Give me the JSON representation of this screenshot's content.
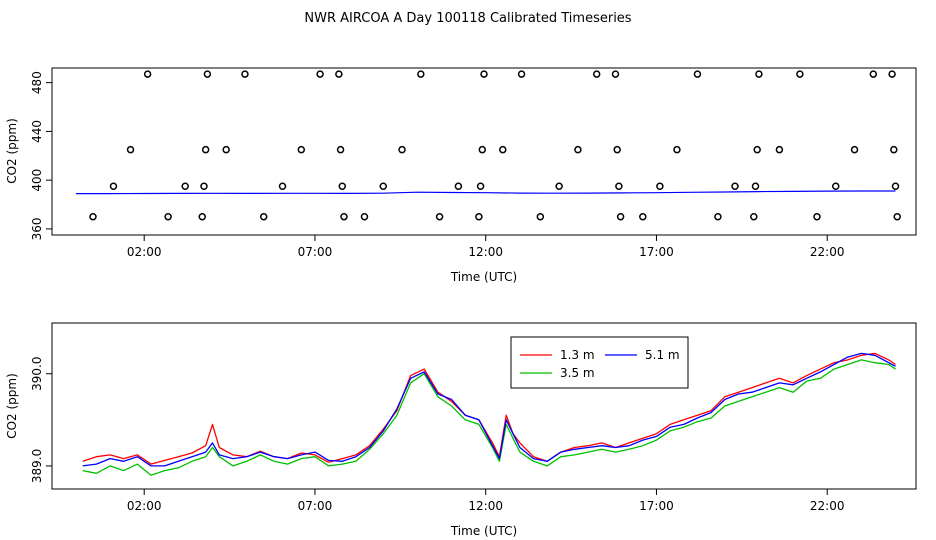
{
  "page_title": "NWR AIRCOA A  Day 100118  Calibrated Timeseries",
  "colors": {
    "1.3 m": "#ff0000",
    "3.5 m": "#00c000",
    "5.1 m": "#0000ff",
    "markers": "#000000"
  },
  "chart_data": [
    {
      "type": "scatter",
      "title": "NWR AIRCOA A  Day 100118  Calibrated Timeseries",
      "xlabel": "Time (UTC)",
      "ylabel": "CO2 (ppm)",
      "xlim": [
        -0.7,
        24.6
      ],
      "ylim": [
        355,
        492
      ],
      "grid": false,
      "x_ticks": [
        2,
        7,
        12,
        17,
        22
      ],
      "x_tick_labels": [
        "02:00",
        "07:00",
        "12:00",
        "17:00",
        "22:00"
      ],
      "y_ticks": [
        360,
        400,
        440,
        480
      ],
      "y_tick_labels": [
        "360",
        "400",
        "440",
        "480"
      ],
      "calibration_markers": [
        {
          "x": 0.5,
          "y": 370
        },
        {
          "x": 1.1,
          "y": 395
        },
        {
          "x": 1.6,
          "y": 425
        },
        {
          "x": 2.1,
          "y": 487
        },
        {
          "x": 2.7,
          "y": 370
        },
        {
          "x": 3.2,
          "y": 395
        },
        {
          "x": 3.7,
          "y": 370
        },
        {
          "x": 3.75,
          "y": 395
        },
        {
          "x": 3.8,
          "y": 425
        },
        {
          "x": 3.85,
          "y": 487
        },
        {
          "x": 4.4,
          "y": 425
        },
        {
          "x": 4.95,
          "y": 487
        },
        {
          "x": 5.5,
          "y": 370
        },
        {
          "x": 6.05,
          "y": 395
        },
        {
          "x": 6.6,
          "y": 425
        },
        {
          "x": 7.15,
          "y": 487
        },
        {
          "x": 7.7,
          "y": 487
        },
        {
          "x": 7.75,
          "y": 425
        },
        {
          "x": 7.8,
          "y": 395
        },
        {
          "x": 7.85,
          "y": 370
        },
        {
          "x": 8.45,
          "y": 370
        },
        {
          "x": 9.0,
          "y": 395
        },
        {
          "x": 9.55,
          "y": 425
        },
        {
          "x": 10.1,
          "y": 487
        },
        {
          "x": 10.65,
          "y": 370
        },
        {
          "x": 11.2,
          "y": 395
        },
        {
          "x": 11.8,
          "y": 370
        },
        {
          "x": 11.85,
          "y": 395
        },
        {
          "x": 11.9,
          "y": 425
        },
        {
          "x": 11.95,
          "y": 487
        },
        {
          "x": 12.5,
          "y": 425
        },
        {
          "x": 13.05,
          "y": 487
        },
        {
          "x": 13.6,
          "y": 370
        },
        {
          "x": 14.15,
          "y": 395
        },
        {
          "x": 14.7,
          "y": 425
        },
        {
          "x": 15.25,
          "y": 487
        },
        {
          "x": 15.8,
          "y": 487
        },
        {
          "x": 15.85,
          "y": 425
        },
        {
          "x": 15.9,
          "y": 395
        },
        {
          "x": 15.95,
          "y": 370
        },
        {
          "x": 16.6,
          "y": 370
        },
        {
          "x": 17.1,
          "y": 395
        },
        {
          "x": 17.6,
          "y": 425
        },
        {
          "x": 18.2,
          "y": 487
        },
        {
          "x": 18.8,
          "y": 370
        },
        {
          "x": 19.3,
          "y": 395
        },
        {
          "x": 19.85,
          "y": 370
        },
        {
          "x": 19.9,
          "y": 395
        },
        {
          "x": 19.95,
          "y": 425
        },
        {
          "x": 20.0,
          "y": 487
        },
        {
          "x": 20.6,
          "y": 425
        },
        {
          "x": 21.2,
          "y": 487
        },
        {
          "x": 21.7,
          "y": 370
        },
        {
          "x": 22.25,
          "y": 395
        },
        {
          "x": 22.8,
          "y": 425
        },
        {
          "x": 23.35,
          "y": 487
        },
        {
          "x": 23.9,
          "y": 487
        },
        {
          "x": 23.95,
          "y": 425
        },
        {
          "x": 24.0,
          "y": 395
        },
        {
          "x": 24.05,
          "y": 370
        }
      ],
      "series": [
        {
          "x": [
            0,
            1,
            2,
            3,
            4,
            5,
            6,
            7,
            8,
            9,
            10,
            11,
            12,
            13,
            14,
            15,
            16,
            17,
            18,
            19,
            20,
            21,
            22,
            23,
            24
          ],
          "y": [
            389.0,
            389.0,
            389.05,
            389.1,
            389.2,
            389.15,
            389.2,
            389.2,
            389.1,
            389.3,
            390.1,
            389.9,
            389.7,
            389.4,
            389.3,
            389.4,
            389.5,
            389.7,
            390.0,
            390.3,
            390.6,
            390.8,
            391.0,
            391.1,
            391.1
          ]
        }
      ]
    },
    {
      "type": "line",
      "xlabel": "Time (UTC)",
      "ylabel": "CO2 (ppm)",
      "xlim": [
        -0.7,
        24.6
      ],
      "ylim": [
        388.75,
        390.55
      ],
      "grid": false,
      "legend_position": "top-right",
      "x_ticks": [
        2,
        7,
        12,
        17,
        22
      ],
      "x_tick_labels": [
        "02:00",
        "07:00",
        "12:00",
        "17:00",
        "22:00"
      ],
      "y_ticks": [
        389.0,
        390.0
      ],
      "y_tick_labels": [
        "389.0",
        "390.0"
      ],
      "legend": [
        "1.3 m",
        "3.5 m",
        "5.1 m"
      ],
      "x": [
        0.2,
        0.6,
        1.0,
        1.4,
        1.8,
        2.2,
        2.6,
        3.0,
        3.4,
        3.8,
        4.0,
        4.2,
        4.6,
        5.0,
        5.4,
        5.8,
        6.2,
        6.6,
        7.0,
        7.4,
        7.8,
        8.2,
        8.6,
        9.0,
        9.4,
        9.8,
        10.2,
        10.6,
        11.0,
        11.4,
        11.8,
        12.2,
        12.4,
        12.6,
        12.8,
        13.0,
        13.4,
        13.8,
        14.2,
        14.6,
        15.0,
        15.4,
        15.8,
        16.2,
        16.6,
        17.0,
        17.4,
        17.8,
        18.2,
        18.6,
        19.0,
        19.4,
        19.8,
        20.2,
        20.6,
        21.0,
        21.4,
        21.8,
        22.2,
        22.6,
        23.0,
        23.4,
        23.8,
        24.0
      ],
      "series": [
        {
          "name": "1.3 m",
          "values": [
            389.05,
            389.1,
            389.12,
            389.08,
            389.12,
            389.02,
            389.06,
            389.1,
            389.14,
            389.22,
            389.45,
            389.2,
            389.12,
            389.1,
            389.16,
            389.1,
            389.08,
            389.14,
            389.12,
            389.04,
            389.08,
            389.12,
            389.22,
            389.4,
            389.6,
            389.98,
            390.05,
            389.8,
            389.7,
            389.55,
            389.5,
            389.25,
            389.1,
            389.55,
            389.35,
            389.25,
            389.1,
            389.05,
            389.15,
            389.2,
            389.22,
            389.25,
            389.2,
            389.25,
            389.3,
            389.35,
            389.45,
            389.5,
            389.55,
            389.6,
            389.75,
            389.8,
            389.85,
            389.9,
            389.95,
            389.9,
            389.98,
            390.05,
            390.12,
            390.15,
            390.2,
            390.22,
            390.15,
            390.1
          ]
        },
        {
          "name": "3.5 m",
          "values": [
            388.95,
            388.92,
            389.0,
            388.95,
            389.02,
            388.9,
            388.95,
            388.98,
            389.05,
            389.1,
            389.2,
            389.1,
            389.0,
            389.05,
            389.12,
            389.05,
            389.02,
            389.08,
            389.1,
            389.0,
            389.02,
            389.05,
            389.18,
            389.35,
            389.55,
            389.9,
            390.0,
            389.75,
            389.65,
            389.5,
            389.45,
            389.2,
            389.05,
            389.45,
            389.3,
            389.15,
            389.05,
            389.0,
            389.1,
            389.12,
            389.15,
            389.18,
            389.15,
            389.18,
            389.22,
            389.28,
            389.38,
            389.42,
            389.48,
            389.52,
            389.65,
            389.7,
            389.75,
            389.8,
            389.85,
            389.8,
            389.92,
            389.95,
            390.05,
            390.1,
            390.15,
            390.12,
            390.1,
            390.05
          ]
        },
        {
          "name": "5.1 m",
          "values": [
            389.0,
            389.02,
            389.08,
            389.05,
            389.1,
            389.0,
            389.0,
            389.05,
            389.1,
            389.15,
            389.25,
            389.12,
            389.08,
            389.1,
            389.15,
            389.1,
            389.08,
            389.12,
            389.15,
            389.06,
            389.05,
            389.1,
            389.2,
            389.38,
            389.62,
            389.95,
            390.02,
            389.78,
            389.72,
            389.55,
            389.5,
            389.22,
            389.08,
            389.5,
            389.35,
            389.2,
            389.08,
            389.05,
            389.15,
            389.18,
            389.2,
            389.22,
            389.2,
            389.22,
            389.28,
            389.32,
            389.42,
            389.45,
            389.52,
            389.58,
            389.72,
            389.78,
            389.8,
            389.85,
            389.9,
            389.88,
            389.95,
            390.02,
            390.1,
            390.18,
            390.22,
            390.2,
            390.12,
            390.08
          ]
        }
      ]
    }
  ]
}
